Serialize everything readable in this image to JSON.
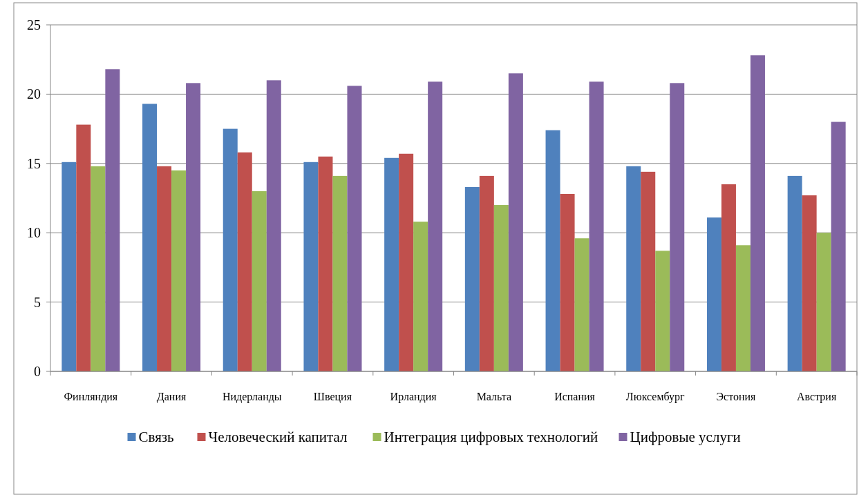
{
  "chart_data": {
    "type": "bar",
    "categories": [
      "Финляндия",
      "Дания",
      "Нидерланды",
      "Швеция",
      "Ирландия",
      "Мальта",
      "Испания",
      "Люксембург",
      "Эстония",
      "Австрия"
    ],
    "series": [
      {
        "name": "Связь",
        "color": "#4f81bd",
        "values": [
          15.1,
          19.3,
          17.5,
          15.1,
          15.4,
          13.3,
          17.4,
          14.8,
          11.1,
          14.1
        ]
      },
      {
        "name": "Человеческий капитал",
        "color": "#c0504d",
        "values": [
          17.8,
          14.8,
          15.8,
          15.5,
          15.7,
          14.1,
          12.8,
          14.4,
          13.5,
          12.7
        ]
      },
      {
        "name": "Интеграция цифровых технологий",
        "color": "#9bbb59",
        "values": [
          14.8,
          14.5,
          13.0,
          14.1,
          10.8,
          12.0,
          9.6,
          8.7,
          9.1,
          10.0
        ]
      },
      {
        "name": "Цифровые услуги",
        "color": "#8064a2",
        "values": [
          21.8,
          20.8,
          21.0,
          20.6,
          20.9,
          21.5,
          20.9,
          20.8,
          22.8,
          18.0
        ]
      }
    ],
    "ylim": [
      0,
      25
    ],
    "yticks": [
      0,
      5,
      10,
      15,
      20,
      25
    ],
    "grid": "y",
    "legend": "bottom"
  }
}
